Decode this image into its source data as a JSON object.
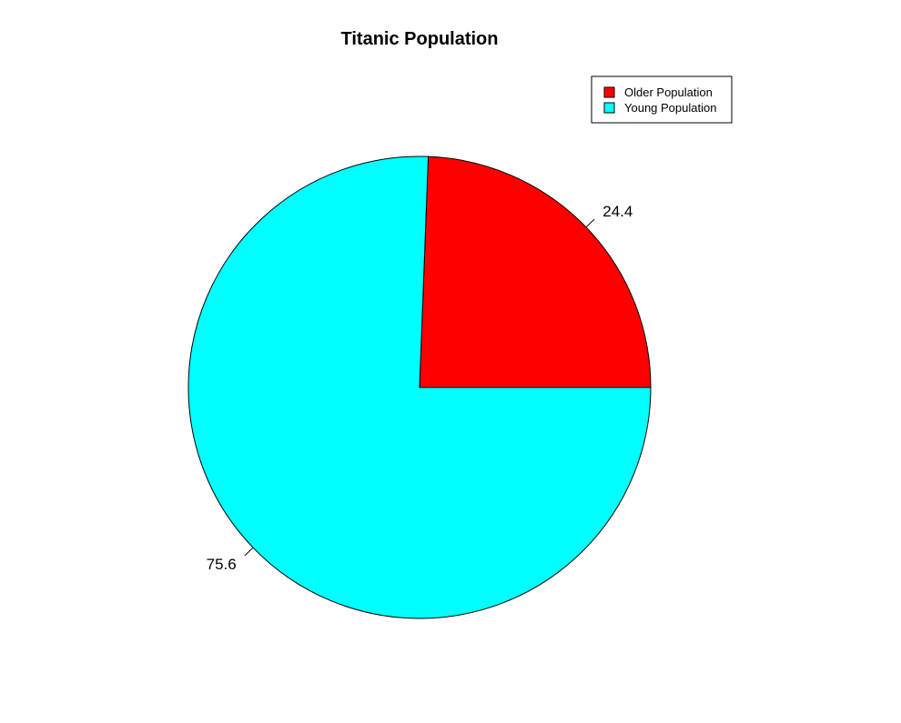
{
  "chart_data": {
    "type": "pie",
    "title": "Titanic Population",
    "categories": [
      "Older Population",
      "Young Population"
    ],
    "values": [
      24.4,
      75.6
    ],
    "labels": [
      "24.4",
      "75.6"
    ],
    "colors": [
      "#ff0000",
      "#00ffff"
    ],
    "legend": {
      "position": "top-right",
      "entries": [
        "Older Population",
        "Young Population"
      ]
    },
    "start": "3 o'clock",
    "direction": "counter-clockwise"
  }
}
